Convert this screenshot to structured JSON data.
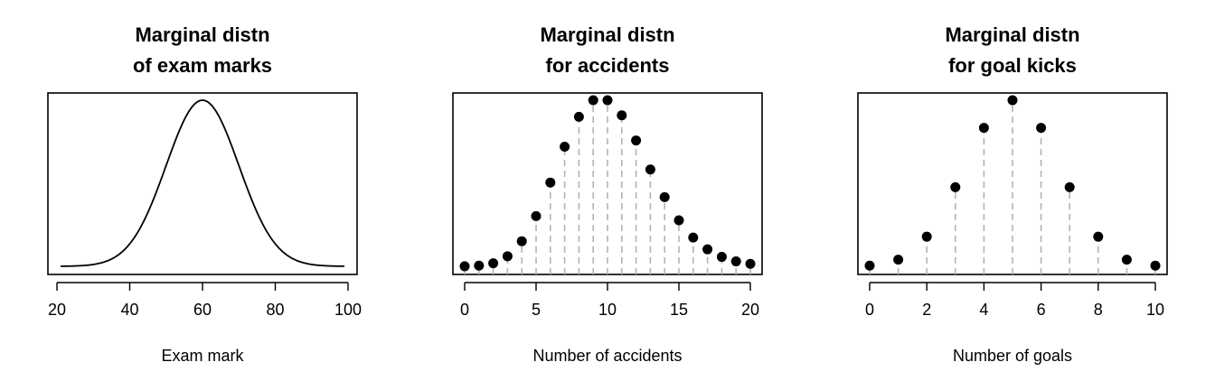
{
  "chart_data": [
    {
      "type": "line",
      "title": [
        "Marginal distn",
        "of exam marks"
      ],
      "xlabel": "Exam mark",
      "ylabel": "",
      "xlim": [
        20,
        100
      ],
      "xticks": [
        20,
        40,
        60,
        80,
        100
      ],
      "distribution": "normal",
      "mean": 60,
      "sd": 10,
      "x_range": [
        21,
        99
      ]
    },
    {
      "type": "scatter",
      "title": [
        "Marginal distn",
        "for accidents"
      ],
      "xlabel": "Number of accidents",
      "ylabel": "",
      "xlim": [
        0,
        20
      ],
      "xticks": [
        0,
        5,
        10,
        15,
        20
      ],
      "x": [
        0,
        1,
        2,
        3,
        4,
        5,
        6,
        7,
        8,
        9,
        10,
        11,
        12,
        13,
        14,
        15,
        16,
        17,
        18,
        19,
        20
      ],
      "values": [
        5e-05,
        0.0005,
        0.0023,
        0.0076,
        0.0189,
        0.0378,
        0.0631,
        0.0901,
        0.1126,
        0.1251,
        0.1251,
        0.1137,
        0.0948,
        0.0729,
        0.0521,
        0.0347,
        0.0217,
        0.0128,
        0.0071,
        0.0037,
        0.0019
      ],
      "ylim": [
        0,
        0.1251
      ]
    },
    {
      "type": "scatter",
      "title": [
        "Marginal distn",
        "for goal kicks"
      ],
      "xlabel": "Number of goals",
      "ylabel": "",
      "xlim": [
        0,
        10
      ],
      "xticks": [
        0,
        2,
        4,
        6,
        8,
        10
      ],
      "x": [
        0,
        1,
        2,
        3,
        4,
        5,
        6,
        7,
        8,
        9,
        10
      ],
      "values": [
        0.001,
        0.0098,
        0.0439,
        0.1172,
        0.2051,
        0.2461,
        0.2051,
        0.1172,
        0.0439,
        0.0098,
        0.001
      ],
      "ylim": [
        0,
        0.2461
      ]
    }
  ]
}
